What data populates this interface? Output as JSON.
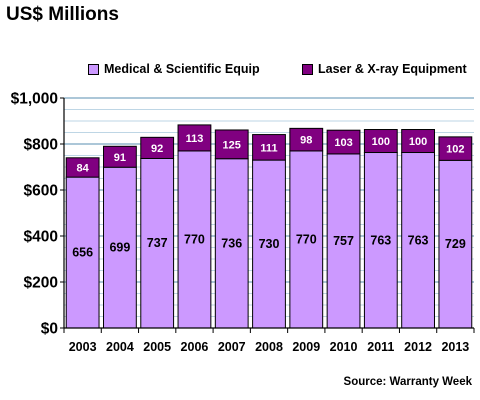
{
  "title": "US$ Millions",
  "source": "Source: Warranty Week",
  "legend": [
    {
      "label": "Medical & Scientific Equip",
      "color": "#cc99ff"
    },
    {
      "label": "Laser & X-ray Equipment",
      "color": "#800080"
    }
  ],
  "chart_data": {
    "type": "bar",
    "stacked": true,
    "categories": [
      "2003",
      "2004",
      "2005",
      "2006",
      "2007",
      "2008",
      "2009",
      "2010",
      "2011",
      "2012",
      "2013"
    ],
    "series": [
      {
        "name": "Medical & Scientific Equip",
        "color": "#cc99ff",
        "values": [
          656,
          699,
          737,
          770,
          736,
          730,
          770,
          757,
          763,
          763,
          729
        ]
      },
      {
        "name": "Laser & X-ray Equipment",
        "color": "#800080",
        "values": [
          84,
          91,
          92,
          113,
          125,
          111,
          98,
          103,
          100,
          100,
          102
        ]
      }
    ],
    "ylim": [
      0,
      1000
    ],
    "yticks": [
      0,
      200,
      400,
      600,
      800,
      1000
    ],
    "ytick_labels": [
      "$0",
      "$200",
      "$400",
      "$600",
      "$800",
      "$1,000"
    ],
    "grid": true,
    "legend_position": "top",
    "xlabel": "",
    "ylabel": ""
  }
}
